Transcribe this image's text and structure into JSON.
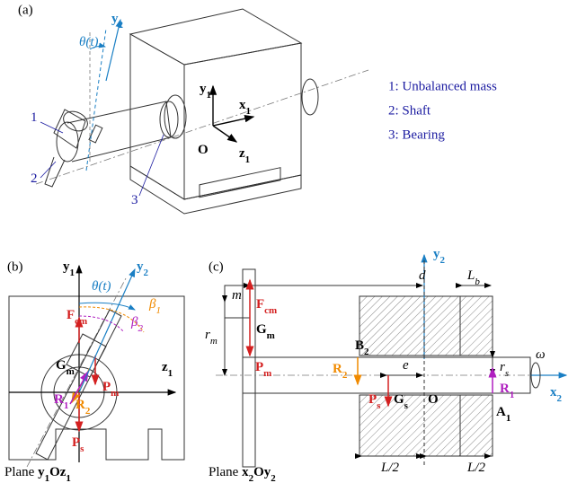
{
  "panel_a": {
    "tag": "(a)",
    "labels": {
      "theta": {
        "t": "θ(t)"
      },
      "y2": {
        "t": "y",
        "s": "2"
      },
      "y1": {
        "t": "y",
        "s": "1"
      },
      "x1": {
        "t": "x",
        "s": "1"
      },
      "z1": {
        "t": "z",
        "s": "1"
      },
      "O": {
        "t": "O"
      },
      "n1": {
        "t": "1"
      },
      "n2": {
        "t": "2"
      },
      "n3": {
        "t": "3"
      }
    },
    "legend": [
      "1: Unbalanced mass",
      "2: Shaft",
      "3: Bearing"
    ]
  },
  "panel_b": {
    "tag": "(b)",
    "labels": {
      "y1": {
        "t": "y",
        "s": "1"
      },
      "theta": {
        "t": "θ(t)"
      },
      "y2": {
        "t": "y",
        "s": "2"
      },
      "beta1": {
        "t": "β",
        "s": "1"
      },
      "beta2": {
        "t": "β",
        "s": "2"
      },
      "Fcm": {
        "t": "F",
        "s": "cm"
      },
      "Gm": {
        "t": "G",
        "s": "m"
      },
      "Pm": {
        "t": "P",
        "s": "m"
      },
      "R1": {
        "t": "R",
        "s": "1"
      },
      "R2": {
        "t": "R",
        "s": "2"
      },
      "Ps": {
        "t": "P",
        "s": "s"
      },
      "z1": {
        "t": "z",
        "s": "1"
      }
    },
    "caption": {
      "prefix": "Plane ",
      "parts": [
        {
          "t": "y",
          "s": "1"
        },
        {
          "t": "O"
        },
        {
          "t": "z",
          "s": "1"
        }
      ]
    }
  },
  "panel_c": {
    "tag": "(c)",
    "labels": {
      "y2": {
        "t": "y",
        "s": "2"
      },
      "d": {
        "t": "d"
      },
      "Lb": {
        "t": "L",
        "s": "b"
      },
      "m": {
        "t": "m"
      },
      "Fcm": {
        "t": "F",
        "s": "cm"
      },
      "Gm": {
        "t": "G",
        "s": "m"
      },
      "rm": {
        "t": "r",
        "s": "m"
      },
      "B2": {
        "t": "B",
        "s": "2"
      },
      "Pm": {
        "t": "P",
        "s": "m"
      },
      "R2": {
        "t": "R",
        "s": "2"
      },
      "e": {
        "t": "e"
      },
      "rs": {
        "t": "r",
        "s": "s"
      },
      "omega": {
        "t": "ω"
      },
      "x2": {
        "t": "x",
        "s": "2"
      },
      "Ps": {
        "t": "P",
        "s": "s"
      },
      "Gs": {
        "t": "G",
        "s": "s"
      },
      "O": {
        "t": "O"
      },
      "R1": {
        "t": "R",
        "s": "1"
      },
      "A1": {
        "t": "A",
        "s": "1"
      },
      "half1": {
        "t": "L/2"
      },
      "half2": {
        "t": "L/2"
      }
    },
    "caption": {
      "prefix": "Plane ",
      "parts": [
        {
          "t": "x",
          "s": "2"
        },
        {
          "t": "O"
        },
        {
          "t": "y",
          "s": "2"
        }
      ]
    }
  }
}
